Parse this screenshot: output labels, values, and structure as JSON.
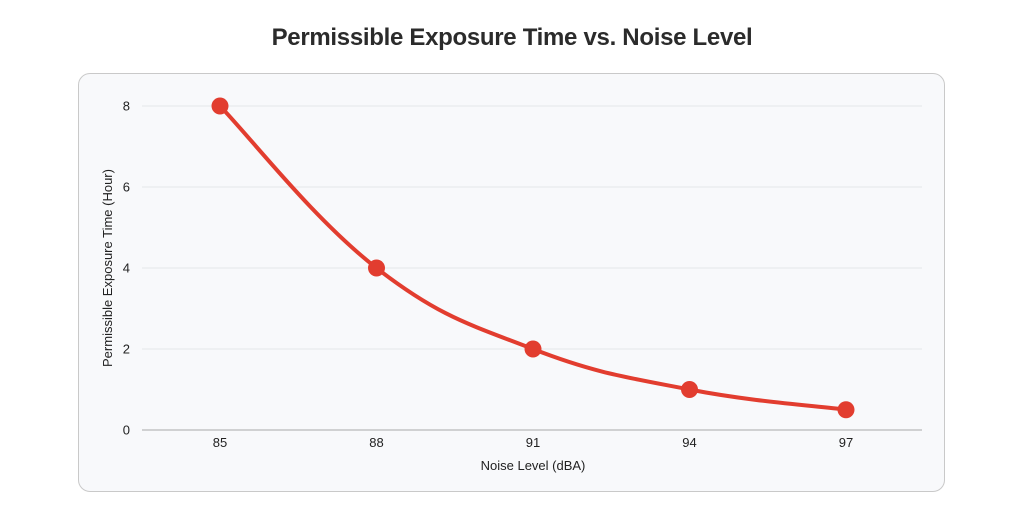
{
  "chart_data": {
    "type": "line",
    "title": "Permissible Exposure Time vs. Noise Level",
    "xlabel": "Noise Level (dBA)",
    "ylabel": "Permissible Exposure Time (Hour)",
    "categories": [
      "85",
      "88",
      "91",
      "94",
      "97"
    ],
    "x": [
      85,
      88,
      91,
      94,
      97
    ],
    "series": [
      {
        "values": [
          8,
          4,
          2,
          1,
          0.5
        ]
      }
    ],
    "ylim": [
      0,
      8
    ],
    "yticks": [
      "0",
      "2",
      "4",
      "6",
      "8"
    ],
    "grid": true,
    "line_style": "smooth",
    "colors": {
      "line": "#e23d2f",
      "marker": "#e23d2f",
      "grid": "#e3e6ea",
      "axis": "#a9a9a9"
    }
  }
}
